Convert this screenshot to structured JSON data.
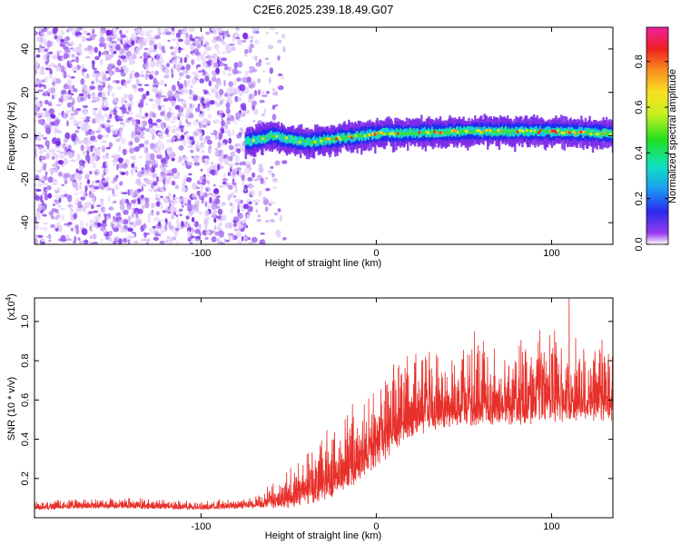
{
  "chart_data": [
    {
      "type": "heatmap",
      "title": "C2E6.2025.239.18.49.G07",
      "xlabel": "Height of straight line (km)",
      "ylabel": "Frequency (Hz)",
      "xlim": [
        -195,
        135
      ],
      "ylim": [
        -50,
        50
      ],
      "xticks": [
        -100,
        0,
        100
      ],
      "xtick_labels": [
        "-100",
        "0",
        "100"
      ],
      "yticks": [
        -40,
        -20,
        0,
        20,
        40
      ],
      "ytick_labels": [
        "-40",
        "-20",
        "0",
        "20",
        "40"
      ],
      "colorbar": {
        "label": "Normalized spectral amplitude",
        "range": [
          0,
          0.95
        ],
        "ticks": [
          0.0,
          0.2,
          0.4,
          0.6,
          0.8
        ],
        "tick_labels": [
          "0.0",
          "0.2",
          "0.4",
          "0.6",
          "0.8"
        ]
      },
      "features": {
        "noise_region_x": [
          -195,
          -60
        ],
        "signal_start_x": -75,
        "signal_track": [
          {
            "x": -75,
            "y": -3
          },
          {
            "x": -60,
            "y": 0
          },
          {
            "x": -40,
            "y": -3
          },
          {
            "x": -20,
            "y": -1
          },
          {
            "x": 0,
            "y": 1
          },
          {
            "x": 50,
            "y": 2
          },
          {
            "x": 100,
            "y": 2
          },
          {
            "x": 135,
            "y": 1
          }
        ]
      }
    },
    {
      "type": "line",
      "title": "",
      "xlabel": "Height of straight line (km)",
      "ylabel": "SNR (10 * v/v)",
      "multiplier_label": "(x10",
      "multiplier_exp": "4",
      "multiplier_close": ")",
      "xlim": [
        -195,
        135
      ],
      "ylim": [
        0,
        1.12
      ],
      "xticks": [
        -100,
        0,
        100
      ],
      "xtick_labels": [
        "-100",
        "0",
        "100"
      ],
      "yticks": [
        0.2,
        0.4,
        0.6,
        0.8,
        1.0
      ],
      "ytick_labels": [
        "0.2",
        "0.4",
        "0.6",
        "0.8",
        "1.0"
      ],
      "color": "#e8302a",
      "series": [
        {
          "name": "SNR",
          "envelope": [
            {
              "x": -195,
              "base": 0.05,
              "spread": 0.04
            },
            {
              "x": -150,
              "base": 0.06,
              "spread": 0.05
            },
            {
              "x": -100,
              "base": 0.05,
              "spread": 0.04
            },
            {
              "x": -70,
              "base": 0.06,
              "spread": 0.05
            },
            {
              "x": -45,
              "base": 0.1,
              "spread": 0.2
            },
            {
              "x": -20,
              "base": 0.2,
              "spread": 0.35
            },
            {
              "x": 0,
              "base": 0.35,
              "spread": 0.4
            },
            {
              "x": 20,
              "base": 0.5,
              "spread": 0.35
            },
            {
              "x": 50,
              "base": 0.55,
              "spread": 0.35
            },
            {
              "x": 100,
              "base": 0.58,
              "spread": 0.4
            },
            {
              "x": 135,
              "base": 0.58,
              "spread": 0.35
            }
          ],
          "peaks": [
            {
              "x": 56,
              "y": 0.95
            },
            {
              "x": 99,
              "y": 0.93
            },
            {
              "x": 110,
              "y": 1.12
            },
            {
              "x": 28,
              "y": 0.82
            }
          ]
        }
      ]
    }
  ]
}
